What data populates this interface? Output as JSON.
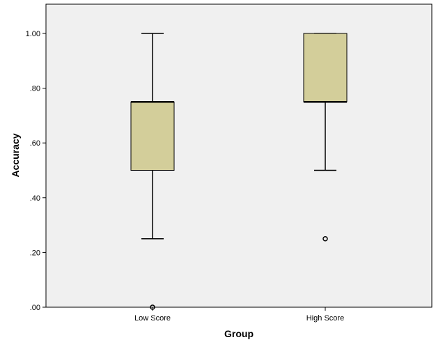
{
  "chart_data": {
    "type": "boxplot",
    "xlabel": "Group",
    "ylabel": "Accuracy",
    "ylim": [
      0,
      1.1
    ],
    "grid": false,
    "y_ticks": [
      {
        "value": 0.0,
        "label": ".00"
      },
      {
        "value": 0.2,
        "label": ".20"
      },
      {
        "value": 0.4,
        "label": ".40"
      },
      {
        "value": 0.6,
        "label": ".60"
      },
      {
        "value": 0.8,
        "label": ".80"
      },
      {
        "value": 1.0,
        "label": "1.00"
      }
    ],
    "categories": [
      "Low Score",
      "High Score"
    ],
    "boxes": [
      {
        "category": "Low Score",
        "whisker_low": 0.25,
        "q1": 0.5,
        "median": 0.75,
        "q3": 0.75,
        "whisker_high": 1.0,
        "outliers": [
          0.0
        ]
      },
      {
        "category": "High Score",
        "whisker_low": 0.5,
        "q1": 0.75,
        "median": 0.75,
        "q3": 1.0,
        "whisker_high": 1.0,
        "outliers": [
          0.25
        ]
      }
    ],
    "colors": {
      "plot_background": "#f0f0f0",
      "box_fill": "#d3ce9a",
      "line": "#000000"
    }
  }
}
